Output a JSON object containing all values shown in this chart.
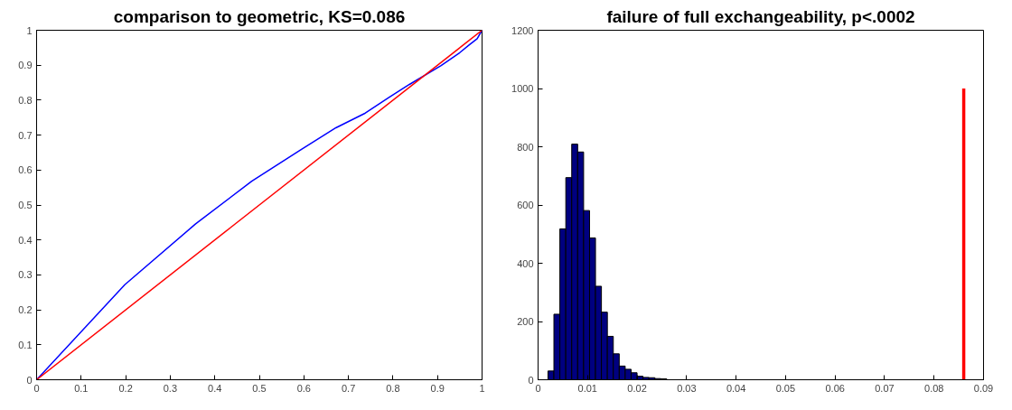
{
  "chart_data": [
    {
      "type": "line",
      "title": "comparison to geometric, KS=0.086",
      "xlim": [
        0,
        1
      ],
      "ylim": [
        0,
        1
      ],
      "xticks": [
        0,
        0.1,
        0.2,
        0.3,
        0.4,
        0.5,
        0.6,
        0.7,
        0.8,
        0.9,
        1
      ],
      "yticks": [
        0,
        0.1,
        0.2,
        0.3,
        0.4,
        0.5,
        0.6,
        0.7,
        0.8,
        0.9,
        1
      ],
      "series": [
        {
          "color": "#0000ff",
          "x": [
            0,
            0.198,
            0.357,
            0.483,
            0.593,
            0.672,
            0.738,
            0.791,
            0.837,
            0.908,
            0.95,
            0.972,
            0.989,
            1
          ],
          "values": [
            0,
            0.272,
            0.446,
            0.568,
            0.658,
            0.721,
            0.763,
            0.808,
            0.845,
            0.899,
            0.936,
            0.959,
            0.976,
            1
          ]
        },
        {
          "color": "#ff0000",
          "x": [
            0,
            1
          ],
          "values": [
            0,
            1
          ]
        }
      ]
    },
    {
      "type": "histogram",
      "title": "failure of full exchangeability, p<.0002",
      "xlim": [
        0,
        0.09
      ],
      "ylim": [
        0,
        1200
      ],
      "xticks": [
        0,
        0.01,
        0.02,
        0.03,
        0.04,
        0.05,
        0.06,
        0.07,
        0.08,
        0.09
      ],
      "yticks": [
        0,
        200,
        400,
        600,
        800,
        1000,
        1200
      ],
      "bins": [
        0.002,
        0.0032,
        0.0044,
        0.0056,
        0.0068,
        0.008,
        0.0092,
        0.0104,
        0.0116,
        0.0128,
        0.014,
        0.0152,
        0.0164,
        0.0176,
        0.0188,
        0.02,
        0.0212,
        0.0224,
        0.0236,
        0.0248,
        0.026
      ],
      "values": [
        30,
        225,
        518,
        694,
        809,
        782,
        581,
        487,
        321,
        232,
        149,
        89,
        47,
        36,
        24,
        12,
        8,
        7,
        4,
        3
      ],
      "color": "#000080",
      "series": [
        {
          "type": "line",
          "color": "#ff0000",
          "x": [
            0.086,
            0.086
          ],
          "values": [
            0,
            1000
          ]
        }
      ]
    }
  ]
}
